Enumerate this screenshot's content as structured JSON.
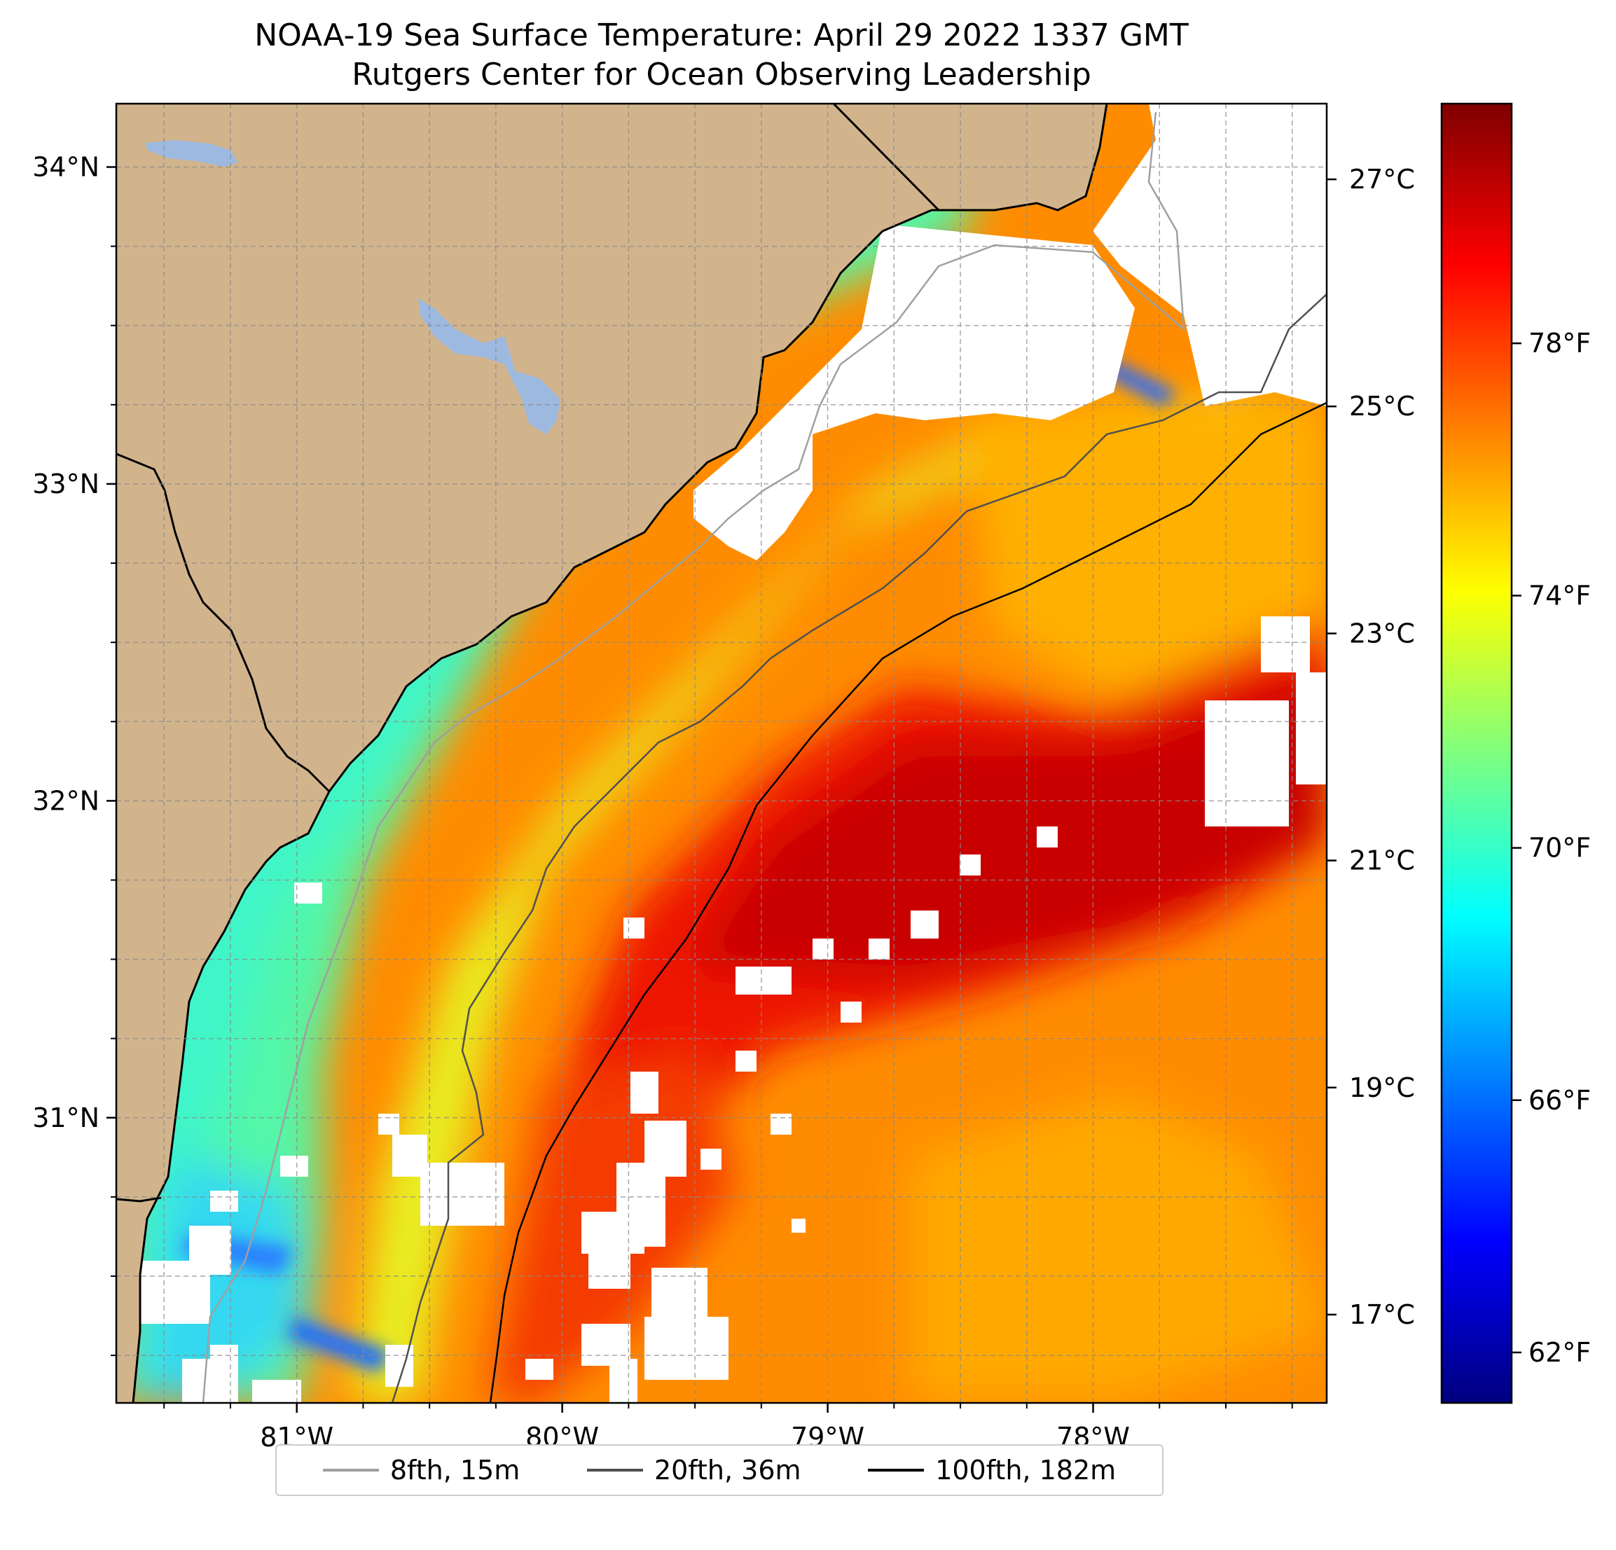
{
  "title": {
    "line1": "NOAA-19 Sea Surface Temperature: April 29 2022 1337 GMT",
    "line2": "Rutgers Center for Ocean Observing Leadership"
  },
  "map": {
    "lon_range": [
      -81.68,
      -77.12
    ],
    "lat_range": [
      30.1,
      34.2
    ],
    "gridlines": true,
    "land_color": "#d2b48c",
    "lake_color": "#9db9e0",
    "lon_ticks": [
      {
        "value": -81,
        "label": "81°W"
      },
      {
        "value": -80,
        "label": "80°W"
      },
      {
        "value": -79,
        "label": "79°W"
      },
      {
        "value": -78,
        "label": "78°W"
      }
    ],
    "lat_ticks": [
      {
        "value": 34,
        "label": "34°N"
      },
      {
        "value": 33,
        "label": "33°N"
      },
      {
        "value": 32,
        "label": "32°N"
      },
      {
        "value": 31,
        "label": "31°N"
      }
    ]
  },
  "colorbar": {
    "colormap": "jet",
    "range_f": [
      61.2,
      81.8
    ],
    "celsius_ticks": [
      {
        "value_c": 27,
        "label": "27°C"
      },
      {
        "value_c": 25,
        "label": "25°C"
      },
      {
        "value_c": 23,
        "label": "23°C"
      },
      {
        "value_c": 21,
        "label": "21°C"
      },
      {
        "value_c": 19,
        "label": "19°C"
      },
      {
        "value_c": 17,
        "label": "17°C"
      }
    ],
    "fahrenheit_ticks": [
      {
        "value_f": 78,
        "label": "78°F"
      },
      {
        "value_f": 74,
        "label": "74°F"
      },
      {
        "value_f": 70,
        "label": "70°F"
      },
      {
        "value_f": 66,
        "label": "66°F"
      },
      {
        "value_f": 62,
        "label": "62°F"
      }
    ]
  },
  "legend": [
    {
      "label": "8fth, 15m",
      "color": "#a0a0a0"
    },
    {
      "label": "20fth, 36m",
      "color": "#505050"
    },
    {
      "label": "100fth, 182m",
      "color": "#000000"
    }
  ]
}
